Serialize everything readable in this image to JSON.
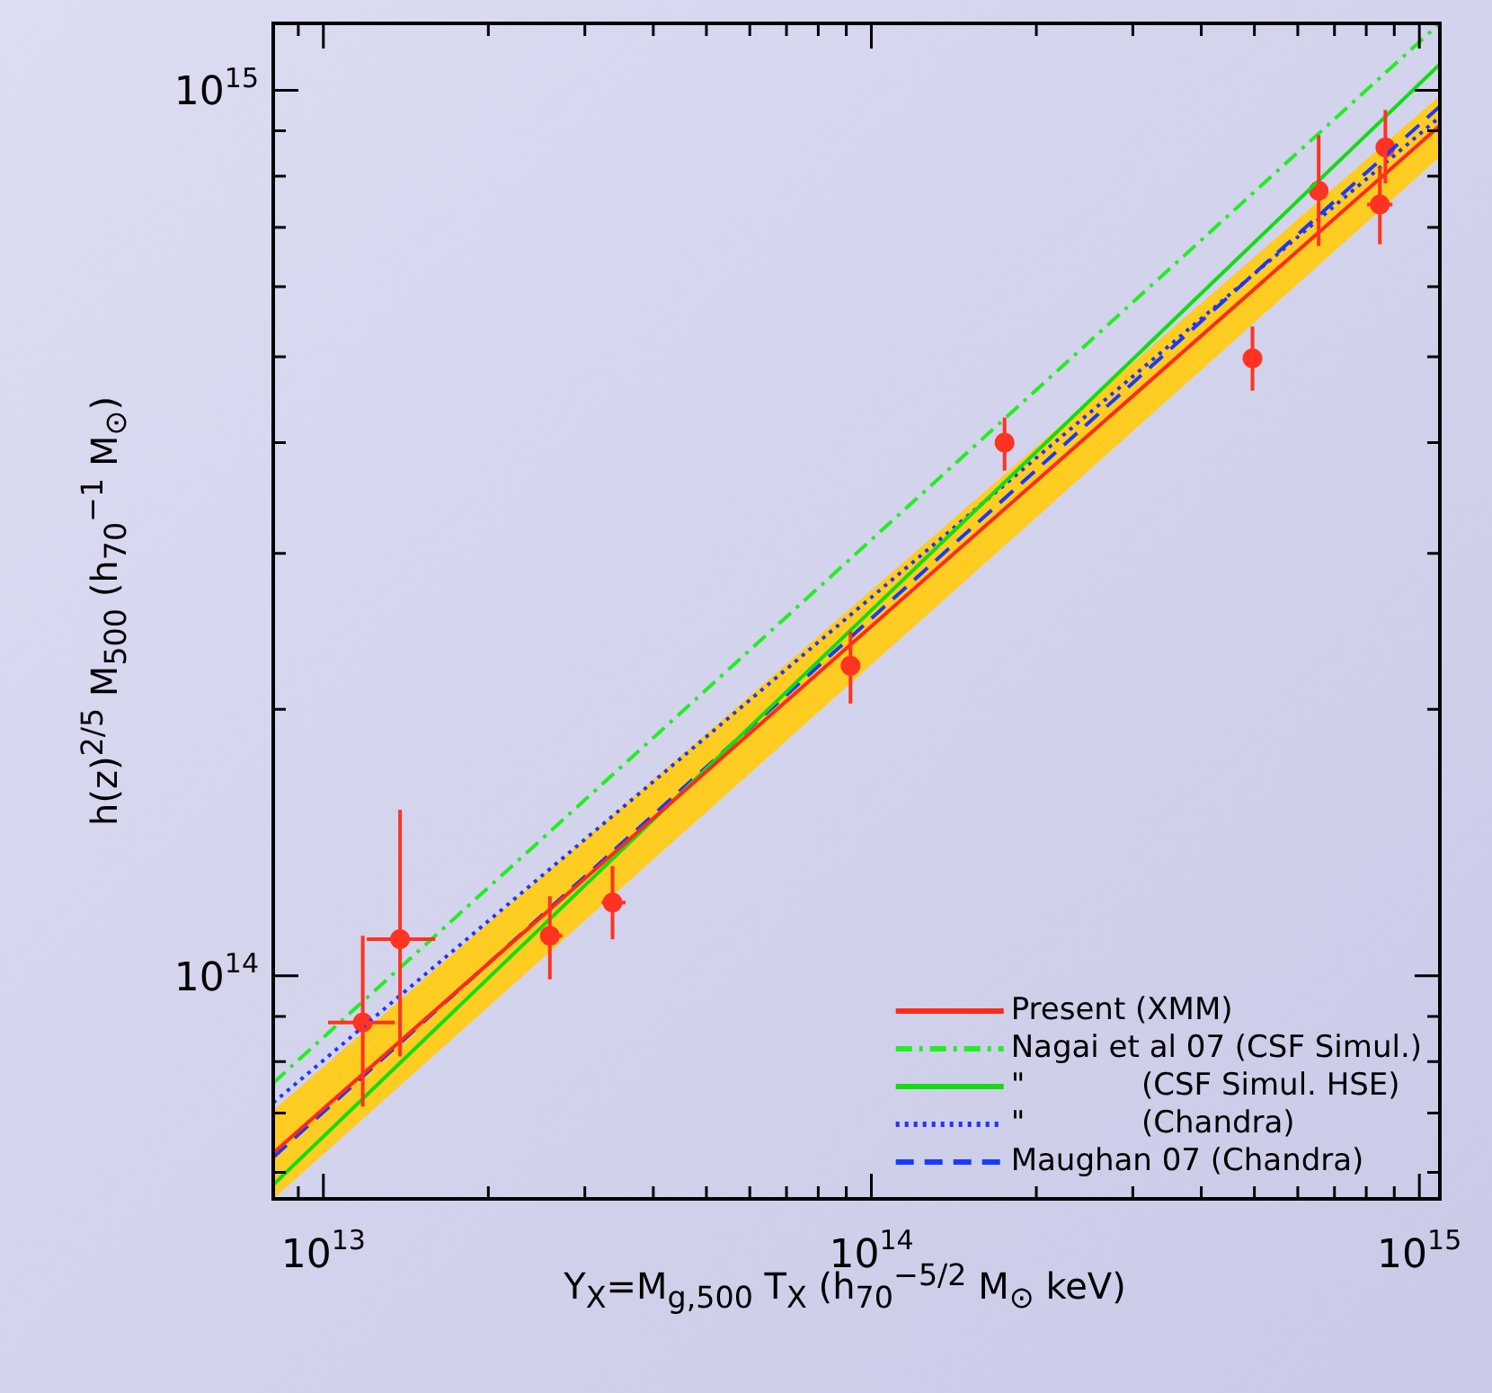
{
  "chart_data": {
    "type": "scatter",
    "xlabel": "Y$_{X}$=M$_{g,500}$ T$_{X}$ (h$_{70}$$^{−5/2}$ M$_{⊙}$ keV)",
    "ylabel": "h(z)$^{2/5}$ M$_{500}$ (h$_{70}$$^{−1}$ M$_{⊙}$)",
    "log": "xy",
    "grid": false,
    "legend": "bottom right",
    "xlim": [
      8100000000000.0,
      1090000000000000.0
    ],
    "ylim": [
      56000000000000.0,
      1190000000000000.0
    ],
    "xticks": [
      {
        "value": 9000000000000.0,
        "label": null
      },
      {
        "value": 10000000000000.0,
        "label": "10$^{13}$"
      },
      {
        "value": 20000000000000.0,
        "label": null
      },
      {
        "value": 30000000000000.0,
        "label": null
      },
      {
        "value": 40000000000000.0,
        "label": null
      },
      {
        "value": 50000000000000.0,
        "label": null
      },
      {
        "value": 60000000000000.0,
        "label": null
      },
      {
        "value": 70000000000000.0,
        "label": null
      },
      {
        "value": 80000000000000.0,
        "label": null
      },
      {
        "value": 90000000000000.0,
        "label": null
      },
      {
        "value": 100000000000000.0,
        "label": "10$^{14}$"
      },
      {
        "value": 200000000000000.0,
        "label": null
      },
      {
        "value": 300000000000000.0,
        "label": null
      },
      {
        "value": 400000000000000.0,
        "label": null
      },
      {
        "value": 500000000000000.0,
        "label": null
      },
      {
        "value": 600000000000000.0,
        "label": null
      },
      {
        "value": 700000000000000.0,
        "label": null
      },
      {
        "value": 800000000000000.0,
        "label": null
      },
      {
        "value": 900000000000000.0,
        "label": null
      },
      {
        "value": 1000000000000000.0,
        "label": "10$^{15}$"
      }
    ],
    "yticks": [
      {
        "value": 60000000000000.0,
        "label": null
      },
      {
        "value": 70000000000000.0,
        "label": null
      },
      {
        "value": 80000000000000.0,
        "label": null
      },
      {
        "value": 90000000000000.0,
        "label": null
      },
      {
        "value": 100000000000000.0,
        "label": "10$^{14}$"
      },
      {
        "value": 200000000000000.0,
        "label": null
      },
      {
        "value": 300000000000000.0,
        "label": null
      },
      {
        "value": 400000000000000.0,
        "label": null
      },
      {
        "value": 500000000000000.0,
        "label": null
      },
      {
        "value": 600000000000000.0,
        "label": null
      },
      {
        "value": 700000000000000.0,
        "label": null
      },
      {
        "value": 800000000000000.0,
        "label": null
      },
      {
        "value": 900000000000000.0,
        "label": null
      },
      {
        "value": 1000000000000000.0,
        "label": "10$^{15}$"
      }
    ],
    "series": [
      {
        "type": "line",
        "name": "Present (XMM)",
        "color": "#ff2a1a",
        "line_style": "solid",
        "marker": "none",
        "x": [
          8100000000000.0,
          1090000000000000.0
        ],
        "values": [
          63100000000000.0,
          912000000000000.0
        ],
        "lower": [
          56000000000000.0,
          841000000000000.0
        ],
        "upper": [
          70500000000000.0,
          986000000000000.0
        ]
      },
      {
        "type": "line",
        "name": "Nagai et al 07 (CSF Simul.)",
        "color": "#22ee22",
        "line_style": "dashdot",
        "marker": "none",
        "x": [
          8100000000000.0,
          1090000000000000.0
        ],
        "values": [
          75700000000000.0,
          1190000000000000.0
        ]
      },
      {
        "type": "line",
        "name": "\"            (CSF Simul. HSE)",
        "color": "#11dd11",
        "line_style": "solid",
        "marker": "none",
        "x": [
          8100000000000.0,
          1090000000000000.0
        ],
        "values": [
          58100000000000.0,
          1070000000000000.0
        ]
      },
      {
        "type": "line",
        "name": "\"            (Chandra)",
        "color": "#2233ff",
        "line_style": "dotted",
        "marker": "none",
        "x": [
          8100000000000.0,
          1090000000000000.0
        ],
        "values": [
          71900000000000.0,
          933000000000000.0
        ]
      },
      {
        "type": "line",
        "name": "Maughan 07 (Chandra)",
        "color": "#1a3aff",
        "line_style": "dashed",
        "marker": "none",
        "x": [
          8100000000000.0,
          1090000000000000.0
        ],
        "values": [
          62400000000000.0,
          959000000000000.0
        ]
      },
      {
        "type": "scatter",
        "color": "#ff3322",
        "marker": "circle",
        "x": [
          11800000000000.0,
          13800000000000.0,
          25900000000000.0,
          33700000000000.0,
          91600000000000.0,
          175000000000000.0,
          496000000000000.0,
          655000000000000.0,
          847000000000000.0,
          867000000000000.0
        ],
        "values": [
          88600000000000.0,
          110000000000000.0,
          111000000000000.0,
          121000000000000.0,
          224000000000000.0,
          400000000000000.0,
          498000000000000.0,
          770000000000000.0,
          743000000000000.0,
          862000000000000.0
        ],
        "errors": [
          [
            71200000000000.0,
            111000000000000.0
          ],
          [
            81100000000000.0,
            154000000000000.0
          ],
          [
            99100000000000.0,
            123000000000000.0
          ],
          [
            110000000000000.0,
            133000000000000.0
          ],
          [
            203000000000000.0,
            245000000000000.0
          ],
          [
            372000000000000.0,
            427000000000000.0
          ],
          [
            458000000000000.0,
            541000000000000.0
          ],
          [
            667000000000000.0,
            890000000000000.0
          ],
          [
            670000000000000.0,
            819000000000000.0
          ],
          [
            785000000000000.0,
            950000000000000.0
          ]
        ],
        "xerrors": [
          [
            10200000000000.0,
            13500000000000.0
          ],
          [
            12000000000000.0,
            16000000000000.0
          ],
          [
            24900000000000.0,
            27300000000000.0
          ],
          [
            32200000000000.0,
            35600000000000.0
          ],
          null,
          null,
          null,
          null,
          [
            803000000000000.0,
            893000000000000.0
          ],
          null
        ]
      }
    ]
  }
}
